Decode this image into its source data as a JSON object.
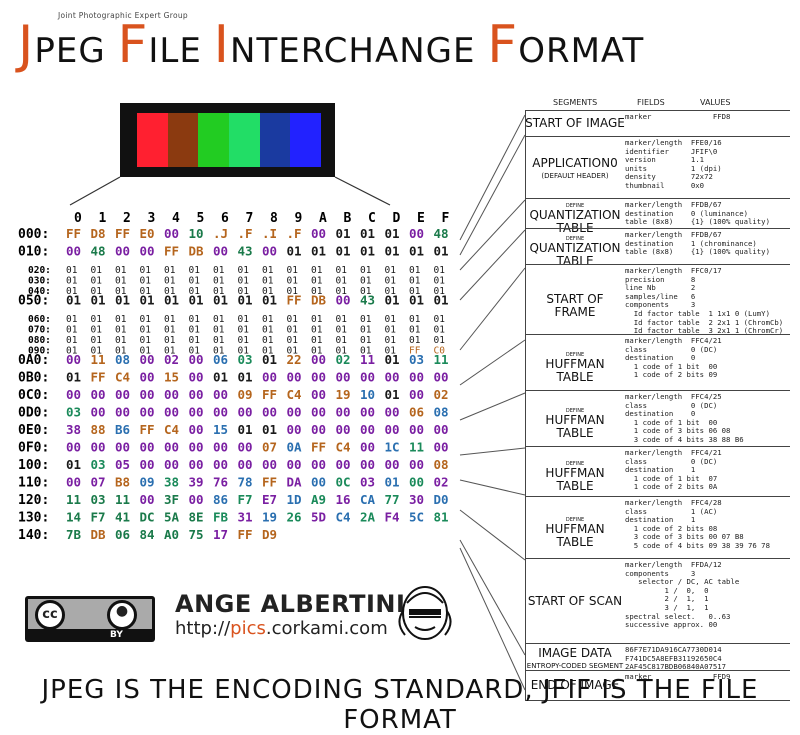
{
  "title": {
    "subtitle": "Joint Photographic Expert Group",
    "j": "J",
    "peg": "PEG ",
    "f1": "F",
    "ile": "ILE ",
    "i": "I",
    "nterchange": "NTERCHANGE ",
    "f2": "F",
    "ormat": "ORMAT"
  },
  "palette": {
    "accent": "#d9531e",
    "bars": [
      "#ff2030",
      "#8b3a10",
      "#22cc22",
      "#22dd66",
      "#1a3aa0",
      "#2222ff"
    ]
  },
  "hex_header": [
    "0",
    "1",
    "2",
    "3",
    "4",
    "5",
    "6",
    "7",
    "8",
    "9",
    "A",
    "B",
    "C",
    "D",
    "E",
    "F"
  ],
  "hex_rows": [
    {
      "addr": "000:",
      "bytes": [
        "FF",
        "D8",
        "FF",
        "E0",
        "00",
        "10",
        ".J",
        ".F",
        ".I",
        ".F",
        "00",
        "01",
        "01",
        "01",
        "00",
        "48"
      ]
    },
    {
      "addr": "010:",
      "bytes": [
        "00",
        "48",
        "00",
        "00",
        "FF",
        "DB",
        "00",
        "43",
        "00",
        "01",
        "01",
        "01",
        "01",
        "01",
        "01",
        "01"
      ]
    },
    {
      "addr": "020:",
      "bytes": [
        "01",
        "01",
        "01",
        "01",
        "01",
        "01",
        "01",
        "01",
        "01",
        "01",
        "01",
        "01",
        "01",
        "01",
        "01",
        "01"
      ],
      "small": true
    },
    {
      "addr": "030:",
      "bytes": [
        "01",
        "01",
        "01",
        "01",
        "01",
        "01",
        "01",
        "01",
        "01",
        "01",
        "01",
        "01",
        "01",
        "01",
        "01",
        "01"
      ],
      "small": true
    },
    {
      "addr": "040:",
      "bytes": [
        "01",
        "01",
        "01",
        "01",
        "01",
        "01",
        "01",
        "01",
        "01",
        "01",
        "01",
        "01",
        "01",
        "01",
        "01",
        "01"
      ],
      "small": true
    },
    {
      "addr": "050:",
      "bytes": [
        "01",
        "01",
        "01",
        "01",
        "01",
        "01",
        "01",
        "01",
        "01",
        "FF",
        "DB",
        "00",
        "43",
        "01",
        "01",
        "01"
      ]
    },
    {
      "addr": "060:",
      "bytes": [
        "01",
        "01",
        "01",
        "01",
        "01",
        "01",
        "01",
        "01",
        "01",
        "01",
        "01",
        "01",
        "01",
        "01",
        "01",
        "01"
      ],
      "small": true
    },
    {
      "addr": "070:",
      "bytes": [
        "01",
        "01",
        "01",
        "01",
        "01",
        "01",
        "01",
        "01",
        "01",
        "01",
        "01",
        "01",
        "01",
        "01",
        "01",
        "01"
      ],
      "small": true
    },
    {
      "addr": "080:",
      "bytes": [
        "01",
        "01",
        "01",
        "01",
        "01",
        "01",
        "01",
        "01",
        "01",
        "01",
        "01",
        "01",
        "01",
        "01",
        "01",
        "01"
      ],
      "small": true
    },
    {
      "addr": "090:",
      "bytes": [
        "01",
        "01",
        "01",
        "01",
        "01",
        "01",
        "01",
        "01",
        "01",
        "01",
        "01",
        "01",
        "01",
        "01",
        "FF",
        "C0"
      ],
      "small": true
    },
    {
      "addr": "0A0:",
      "bytes": [
        "00",
        "11",
        "08",
        "00",
        "02",
        "00",
        "06",
        "03",
        "01",
        "22",
        "00",
        "02",
        "11",
        "01",
        "03",
        "11"
      ]
    },
    {
      "addr": "0B0:",
      "bytes": [
        "01",
        "FF",
        "C4",
        "00",
        "15",
        "00",
        "01",
        "01",
        "00",
        "00",
        "00",
        "00",
        "00",
        "00",
        "00",
        "00"
      ]
    },
    {
      "addr": "0C0:",
      "bytes": [
        "00",
        "00",
        "00",
        "00",
        "00",
        "00",
        "00",
        "09",
        "FF",
        "C4",
        "00",
        "19",
        "10",
        "01",
        "00",
        "02"
      ]
    },
    {
      "addr": "0D0:",
      "bytes": [
        "03",
        "00",
        "00",
        "00",
        "00",
        "00",
        "00",
        "00",
        "00",
        "00",
        "00",
        "00",
        "00",
        "00",
        "06",
        "08"
      ]
    },
    {
      "addr": "0E0:",
      "bytes": [
        "38",
        "88",
        "B6",
        "FF",
        "C4",
        "00",
        "15",
        "01",
        "01",
        "00",
        "00",
        "00",
        "00",
        "00",
        "00",
        "00"
      ]
    },
    {
      "addr": "0F0:",
      "bytes": [
        "00",
        "00",
        "00",
        "00",
        "00",
        "00",
        "00",
        "00",
        "07",
        "0A",
        "FF",
        "C4",
        "00",
        "1C",
        "11",
        "00"
      ]
    },
    {
      "addr": "100:",
      "bytes": [
        "01",
        "03",
        "05",
        "00",
        "00",
        "00",
        "00",
        "00",
        "00",
        "00",
        "00",
        "00",
        "00",
        "00",
        "00",
        "08"
      ]
    },
    {
      "addr": "110:",
      "bytes": [
        "00",
        "07",
        "B8",
        "09",
        "38",
        "39",
        "76",
        "78",
        "FF",
        "DA",
        "00",
        "0C",
        "03",
        "01",
        "00",
        "02"
      ]
    },
    {
      "addr": "120:",
      "bytes": [
        "11",
        "03",
        "11",
        "00",
        "3F",
        "00",
        "86",
        "F7",
        "E7",
        "1D",
        "A9",
        "16",
        "CA",
        "77",
        "30",
        "D0"
      ]
    },
    {
      "addr": "130:",
      "bytes": [
        "14",
        "F7",
        "41",
        "DC",
        "5A",
        "8E",
        "FB",
        "31",
        "19",
        "26",
        "5D",
        "C4",
        "2A",
        "F4",
        "5C",
        "81"
      ]
    },
    {
      "addr": "140:",
      "bytes": [
        "7B",
        "DB",
        "06",
        "84",
        "A0",
        "75",
        "17",
        "FF",
        "D9"
      ]
    }
  ],
  "panel_headers": {
    "segments": "SEGMENTS",
    "fields": "FIELDS",
    "values": "VALUES"
  },
  "segments": [
    {
      "name": "START OF IMAGE",
      "lines": [
        "marker              FFD8"
      ]
    },
    {
      "name": "APPLICATION0",
      "sub": "(DEFAULT HEADER)",
      "lines": [
        "marker/length  FFE0/16",
        "identifier     JFIF\\0",
        "version        1.1",
        "units          1 (dpi)",
        "density        72x72",
        "thumbnail      0x0"
      ]
    },
    {
      "name": "QUANTIZATION TABLE",
      "pre": "DEFINE",
      "lines": [
        "marker/length  FFDB/67",
        "destination    0 (luminance)",
        "table (8x8)    {1} (100% quality)"
      ]
    },
    {
      "name": "QUANTIZATION TABLE",
      "pre": "DEFINE",
      "lines": [
        "marker/length  FFDB/67",
        "destination    1 (chrominance)",
        "table (8x8)    {1} (100% quality)"
      ]
    },
    {
      "name": "START OF FRAME",
      "lines": [
        "marker/length  FFC0/17",
        "precision      8",
        "line Nb        2",
        "samples/line   6",
        "components     3",
        "  Id factor table  1 1x1 0 (LumY)",
        "  Id factor table  2 2x1 1 (ChromCb)",
        "  Id factor table  3 2x1 1 (ChromCr)"
      ]
    },
    {
      "name": "HUFFMAN TABLE",
      "pre": "DEFINE",
      "lines": [
        "marker/length  FFC4/21",
        "class          0 (DC)",
        "destination    0",
        "  1 code of 1 bit  00",
        "  1 code of 2 bits 09"
      ]
    },
    {
      "name": "HUFFMAN TABLE",
      "pre": "DEFINE",
      "lines": [
        "marker/length  FFC4/25",
        "class          0 (DC)",
        "destination    0",
        "  1 code of 1 bit  00",
        "  1 code of 3 bits 06 08",
        "  3 code of 4 bits 38 88 B6"
      ]
    },
    {
      "name": "HUFFMAN TABLE",
      "pre": "DEFINE",
      "lines": [
        "marker/length  FFC4/21",
        "class          0 (DC)",
        "destination    1",
        "  1 code of 1 bit  07",
        "  1 code of 2 bits 0A"
      ]
    },
    {
      "name": "HUFFMAN TABLE",
      "pre": "DEFINE",
      "lines": [
        "marker/length  FFC4/28",
        "class          1 (AC)",
        "destination    1",
        "  1 code of 2 bits 08",
        "  3 code of 3 bits 00 07 B8",
        "  5 code of 4 bits 09 38 39 76 78"
      ]
    },
    {
      "name": "START OF SCAN",
      "lines": [
        "marker/length  FFDA/12",
        "components     3",
        "   selector / DC, AC table",
        "         1 /  0,  0",
        "         2 /  1,  1",
        "         3 /  1,  1",
        "spectral select.   0..63",
        "successive approx. 00"
      ]
    },
    {
      "name": "IMAGE DATA",
      "sub": "ENTROPY-CODED SEGMENT",
      "lines": [
        "86F7E71DA916CA7730D014",
        "F741DC5A8EFB31192650C4",
        "2AF45C817BDB06840A07517"
      ]
    },
    {
      "name": "END OF IMAGE",
      "lines": [
        "marker              FFD9"
      ]
    }
  ],
  "author": "ANGE ALBERTINI",
  "url_prefix": "http://",
  "url_pics": "pics",
  "url_suffix": ".corkami.com",
  "cc_label": "BY",
  "footer": "JPEG IS THE ENCODING STANDARD, JFIF IS THE FILE FORMAT"
}
